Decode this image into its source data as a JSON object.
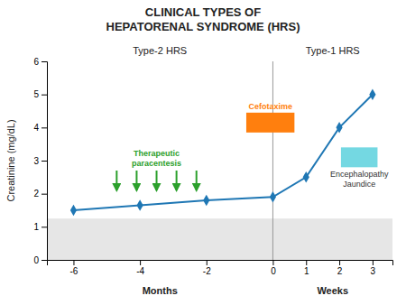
{
  "chart_data": {
    "type": "line",
    "title": "CLINICAL TYPES OF\nHEPATORENAL SYNDROME (HRS)",
    "x": [
      -6,
      -4,
      -2,
      0,
      1,
      2,
      3
    ],
    "values": [
      1.5,
      1.65,
      1.8,
      1.9,
      2.5,
      4.0,
      5.0
    ],
    "marker": "diamond",
    "y_label": "Creatinine (mg/dL)",
    "x_labels": [
      "Months",
      "Weeks"
    ],
    "region_labels": [
      "Type-2 HRS",
      "Type-1 HRS"
    ],
    "xlim": [
      -6.8,
      3.6
    ],
    "xticks": [
      -6,
      -4,
      -2,
      0,
      1,
      2,
      3
    ],
    "ylim": [
      0,
      6
    ],
    "yticks": [
      0,
      1,
      2,
      3,
      4,
      5,
      6
    ],
    "grid": false,
    "divider": 0,
    "normal_range": [
      0,
      1.25
    ],
    "annotations": [
      {
        "text": "Therapeutic\nparacentesis",
        "arrows_x": [
          -4.7,
          -4.1,
          -3.5,
          -2.9,
          -2.3
        ],
        "arrow_from": 2.7,
        "arrow_to": 2.1
      },
      {
        "text": "Cefotaxime",
        "box": {
          "x": -0.8,
          "y": 3.85,
          "width": 1.45,
          "height": 0.6
        }
      },
      {
        "text": "Encephalopathy\nJaundice",
        "box": {
          "x": 2.05,
          "y": 2.8,
          "width": 1.1,
          "height": 0.6
        }
      }
    ]
  }
}
